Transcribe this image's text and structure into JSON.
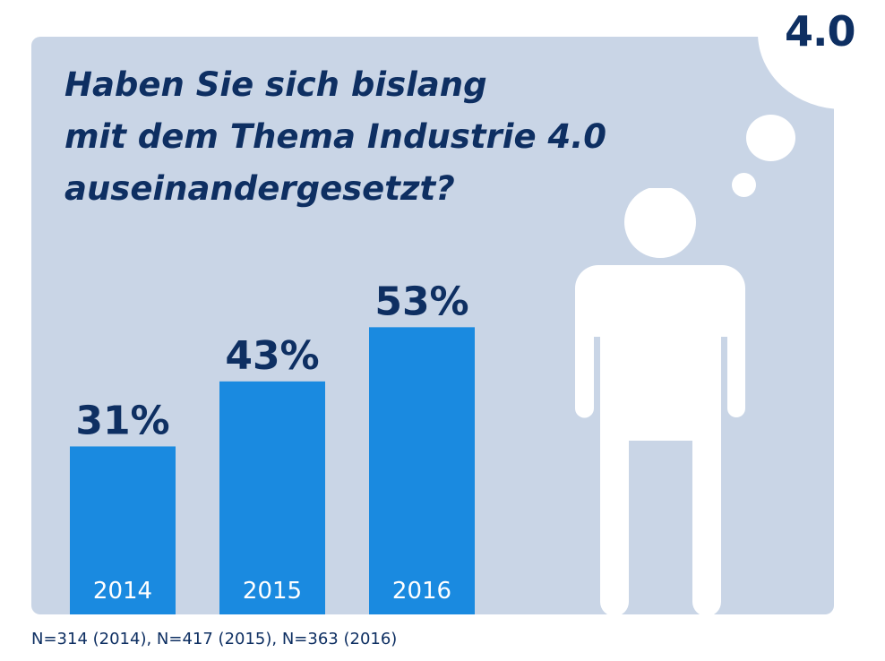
{
  "badge": "4.0",
  "question_lines": [
    "Haben Sie sich bislang",
    "mit dem Thema Industrie 4.0",
    "auseinandergesetzt?"
  ],
  "footnote": "N=314 (2014), N=417 (2015), N=363 (2016)",
  "colors": {
    "panel": "#c9d5e6",
    "bar": "#1a8ae0",
    "text_dark": "#0e2f62",
    "white": "#ffffff"
  },
  "icons": {
    "person": "person-silhouette-icon",
    "thought": "thought-bubble-icon"
  },
  "chart_data": {
    "type": "bar",
    "title": "Haben Sie sich bislang mit dem Thema Industrie 4.0 auseinandergesetzt?",
    "categories": [
      "2014",
      "2015",
      "2016"
    ],
    "values": [
      31,
      43,
      53
    ],
    "value_labels": [
      "31%",
      "43%",
      "53%"
    ],
    "unit": "%",
    "ylim": [
      0,
      100
    ],
    "grid": false,
    "xlabel": "",
    "ylabel": ""
  }
}
